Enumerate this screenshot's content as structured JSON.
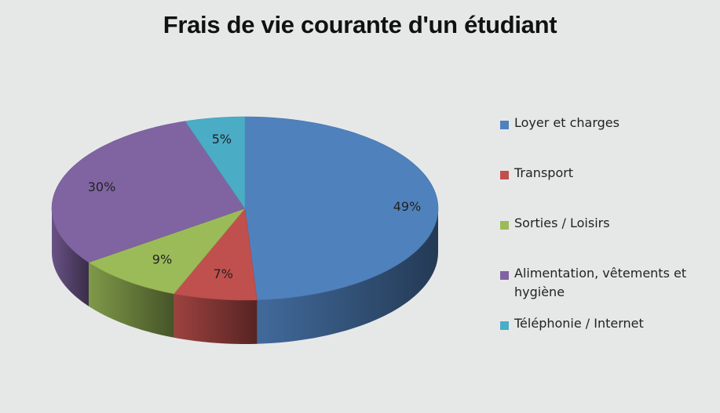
{
  "chart_data": {
    "type": "pie",
    "title": "Frais de vie courante d'un étudiant",
    "categories": [
      "Loyer et charges",
      "Transport",
      "Sorties / Loisirs",
      "Alimentation, vêtements et hygiène",
      "Téléphonie / Internet"
    ],
    "values": [
      49,
      7,
      9,
      30,
      5
    ],
    "value_labels": [
      "49%",
      "7%",
      "9%",
      "30%",
      "5%"
    ],
    "colors": [
      "#4f81bd",
      "#c0504d",
      "#9bbb59",
      "#8064a2",
      "#4bacc6"
    ],
    "legend_position": "right",
    "style": "3d-pie"
  }
}
